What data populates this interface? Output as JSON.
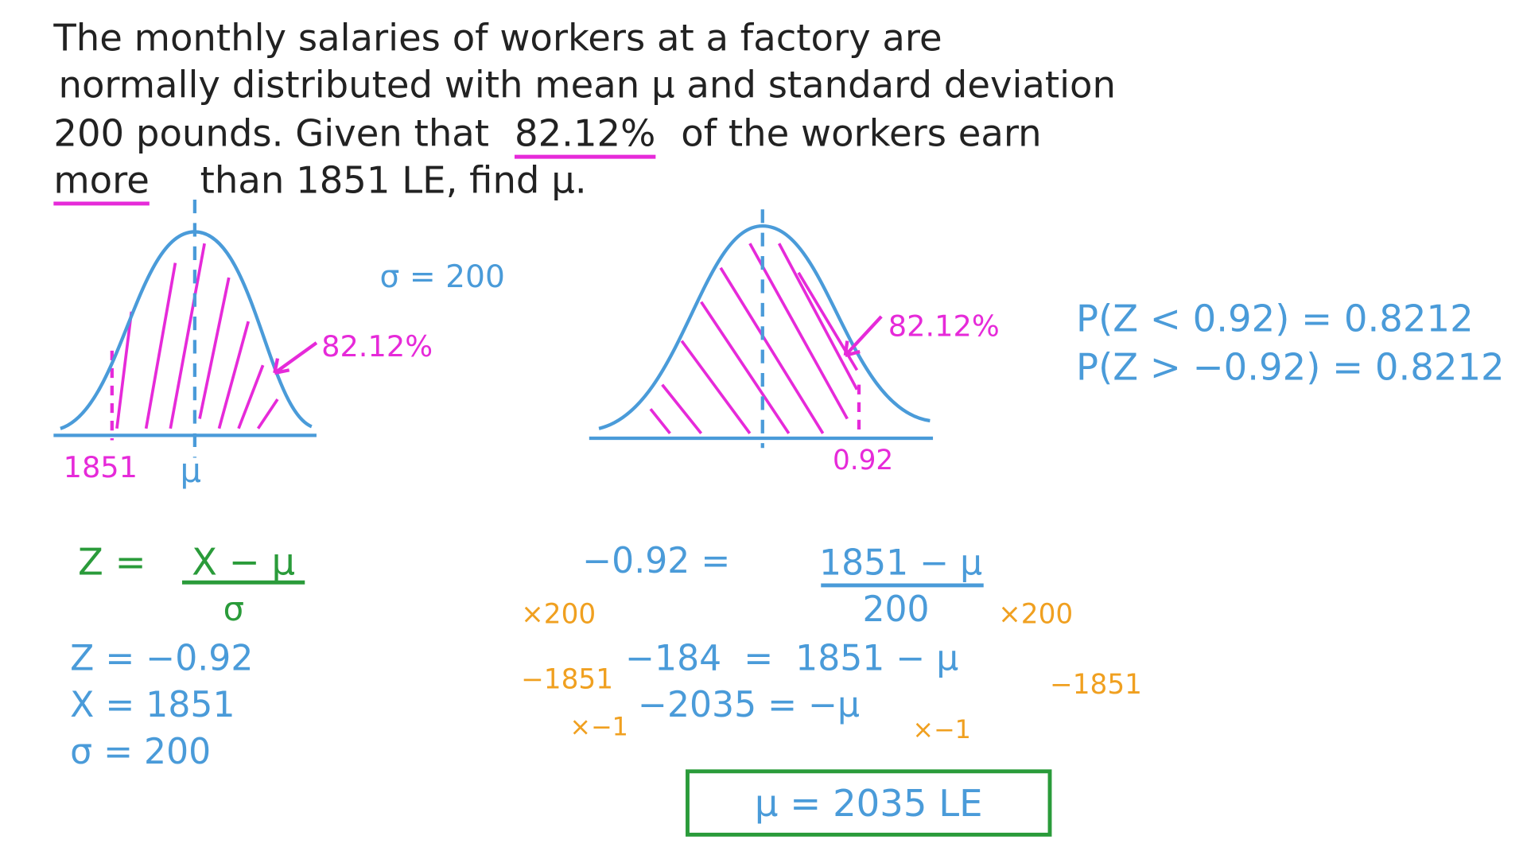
{
  "problem": {
    "line1": "The monthly salaries of workers at a factory are",
    "line2": "normally distributed with mean μ and standard deviation",
    "line3_start": "200 pounds. Given that",
    "highlight_percent": "82.12%",
    "line3_end": "of the workers earn",
    "highlight_more": "more",
    "line4": "than 1851 LE, find μ."
  },
  "diagram_left": {
    "sigma": "σ = 200",
    "area": "82.12%",
    "x_value": "1851",
    "mean": "μ"
  },
  "diagram_right": {
    "area": "82.12%",
    "z_value": "0.92"
  },
  "probabilities": [
    "P(Z < 0.92) = 0.8212",
    "P(Z > −0.92) = 0.8212"
  ],
  "formula": {
    "lhs": "Z =",
    "numerator": "X − μ",
    "denominator": "σ"
  },
  "knowns": [
    "Z = −0.92",
    "X = 1851",
    "σ = 200"
  ],
  "working": {
    "lhs": "−0.92 =",
    "numerator": "1851 − μ",
    "denominator": "200",
    "multiply_left": "×200",
    "multiply_right": "×200",
    "step2": "−184  =  1851 − μ",
    "subtract_left": "−1851",
    "subtract_right": "−1851",
    "step3": "−2035 = −μ",
    "negate_left": "×−1",
    "negate_right": "×−1"
  },
  "answer": "μ = 2035 LE"
}
